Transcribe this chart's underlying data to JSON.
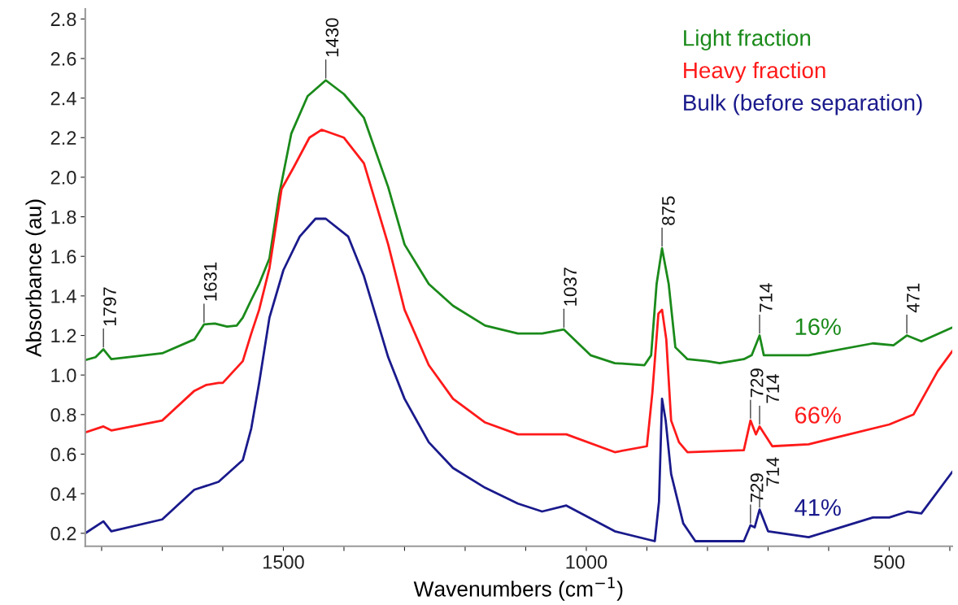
{
  "chart_data": {
    "type": "line",
    "xlabel": "Wavenumbers (cm$^{−1}$)",
    "ylabel": "Absorbance (au)",
    "xlim": [
      1827,
      396
    ],
    "ylim": [
      0.134,
      2.85
    ],
    "xticks": [
      {
        "value": 1800,
        "label": null
      },
      {
        "value": 1700,
        "label": null
      },
      {
        "value": 1600,
        "label": null
      },
      1500,
      {
        "value": 1400,
        "label": null
      },
      {
        "value": 1300,
        "label": null
      },
      {
        "value": 1200,
        "label": null
      },
      {
        "value": 1100,
        "label": null
      },
      1000,
      {
        "value": 900,
        "label": null
      },
      {
        "value": 800,
        "label": null
      },
      {
        "value": 700,
        "label": null
      },
      {
        "value": 600,
        "label": null
      },
      500,
      {
        "value": 400,
        "label": null
      }
    ],
    "yticks": [
      0.2,
      0.4,
      0.6,
      0.8,
      {
        "value": 1,
        "label": "1.0"
      },
      1.2,
      1.4,
      1.6,
      1.8,
      {
        "value": 2,
        "label": "2.0"
      },
      2.2,
      2.4,
      2.6,
      2.8
    ],
    "grid": false,
    "legend": "top right",
    "marker": "none",
    "line_style": "solid",
    "series": [
      {
        "name": "Light fraction",
        "color": "#1a8a1a",
        "x": [
          1827,
          1810,
          1797,
          1784,
          1700,
          1647,
          1631,
          1613,
          1593,
          1577,
          1567,
          1553,
          1540,
          1523,
          1507,
          1487,
          1460,
          1430,
          1400,
          1367,
          1327,
          1300,
          1260,
          1220,
          1167,
          1113,
          1080,
          1073,
          1037,
          993,
          953,
          904,
          893,
          884,
          875,
          864,
          853,
          833,
          800,
          780,
          740,
          727,
          714,
          707,
          633,
          527,
          493,
          471,
          447,
          396
        ],
        "values": [
          1.075,
          1.09,
          1.13,
          1.08,
          1.11,
          1.18,
          1.256,
          1.26,
          1.245,
          1.25,
          1.29,
          1.38,
          1.46,
          1.59,
          1.91,
          2.22,
          2.41,
          2.49,
          2.42,
          2.3,
          1.95,
          1.66,
          1.46,
          1.35,
          1.25,
          1.21,
          1.21,
          1.21,
          1.23,
          1.1,
          1.06,
          1.05,
          1.1,
          1.46,
          1.64,
          1.46,
          1.14,
          1.08,
          1.07,
          1.06,
          1.08,
          1.1,
          1.2,
          1.1,
          1.1,
          1.16,
          1.15,
          1.2,
          1.17,
          1.24
        ]
      },
      {
        "name": "Heavy fraction",
        "color": "#ff1a1a",
        "x": [
          1827,
          1797,
          1784,
          1700,
          1647,
          1627,
          1607,
          1600,
          1567,
          1553,
          1540,
          1523,
          1503,
          1483,
          1457,
          1437,
          1400,
          1367,
          1327,
          1300,
          1260,
          1220,
          1167,
          1113,
          1073,
          1033,
          953,
          900,
          891,
          881,
          875,
          868,
          860,
          847,
          833,
          740,
          729,
          720,
          714,
          693,
          633,
          500,
          460,
          420,
          396
        ],
        "values": [
          0.71,
          0.74,
          0.72,
          0.77,
          0.92,
          0.95,
          0.96,
          0.96,
          1.07,
          1.21,
          1.33,
          1.54,
          1.94,
          2.05,
          2.2,
          2.24,
          2.2,
          2.07,
          1.66,
          1.33,
          1.05,
          0.88,
          0.76,
          0.7,
          0.7,
          0.7,
          0.61,
          0.64,
          0.91,
          1.31,
          1.33,
          1.18,
          0.77,
          0.66,
          0.61,
          0.62,
          0.77,
          0.7,
          0.74,
          0.64,
          0.65,
          0.75,
          0.8,
          1.02,
          1.12
        ]
      },
      {
        "name": "Bulk (before separation)",
        "color": "#1a1a8c",
        "x": [
          1827,
          1797,
          1784,
          1700,
          1647,
          1627,
          1607,
          1567,
          1553,
          1540,
          1523,
          1500,
          1473,
          1447,
          1430,
          1393,
          1367,
          1327,
          1300,
          1260,
          1220,
          1167,
          1113,
          1073,
          1033,
          953,
          887,
          880,
          875,
          869,
          860,
          840,
          820,
          740,
          729,
          722,
          714,
          700,
          633,
          527,
          500,
          469,
          447,
          396
        ],
        "values": [
          0.2,
          0.26,
          0.21,
          0.27,
          0.42,
          0.44,
          0.46,
          0.57,
          0.73,
          0.96,
          1.29,
          1.53,
          1.7,
          1.79,
          1.79,
          1.7,
          1.5,
          1.09,
          0.88,
          0.66,
          0.53,
          0.43,
          0.35,
          0.31,
          0.34,
          0.21,
          0.16,
          0.36,
          0.88,
          0.77,
          0.5,
          0.25,
          0.16,
          0.16,
          0.24,
          0.23,
          0.32,
          0.21,
          0.18,
          0.28,
          0.28,
          0.31,
          0.3,
          0.51
        ]
      }
    ],
    "annotations": [
      {
        "text": "1797",
        "x": 1797,
        "y": 1.13
      },
      {
        "text": "1631",
        "x": 1631,
        "y": 1.256
      },
      {
        "text": "1430",
        "x": 1430,
        "y": 2.49
      },
      {
        "text": "1037",
        "x": 1037,
        "y": 1.23
      },
      {
        "text": "875",
        "x": 875,
        "y": 1.64
      },
      {
        "text": "714",
        "x": 714,
        "y": 1.2
      },
      {
        "text": "471",
        "x": 471,
        "y": 1.2
      },
      {
        "text": "729",
        "x": 729,
        "y": 0.77
      },
      {
        "text": "714",
        "x": 714,
        "y": 0.74
      },
      {
        "text": "729",
        "x": 729,
        "y": 0.24
      },
      {
        "text": "714",
        "x": 714,
        "y": 0.32
      },
      "16%",
      "66%",
      "41%"
    ]
  }
}
